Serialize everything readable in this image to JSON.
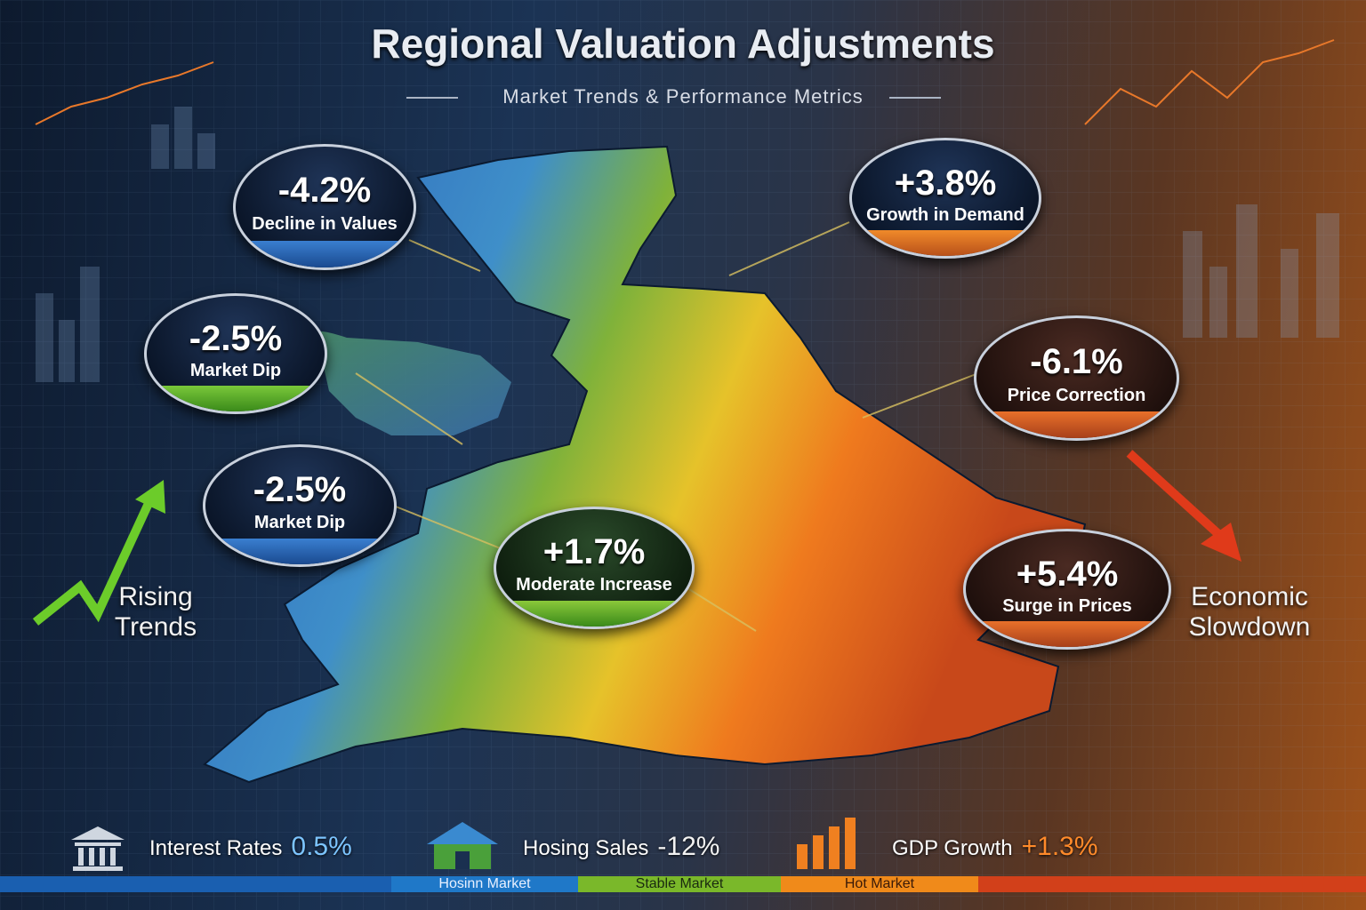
{
  "header": {
    "title": "Regional Valuation Adjustments",
    "subtitle": "Market Trends & Performance Metrics"
  },
  "callouts": [
    {
      "value": "-4.2%",
      "label": "Decline in Values"
    },
    {
      "value": "+3.8%",
      "label": "Growth in Demand"
    },
    {
      "value": "-2.5%",
      "label": "Market Dip"
    },
    {
      "value": "-6.1%",
      "label": "Price Correction"
    },
    {
      "value": "-2.5%",
      "label": "Market Dip"
    },
    {
      "value": "+1.7%",
      "label": "Moderate Increase"
    },
    {
      "value": "+5.4%",
      "label": "Surge in Prices"
    }
  ],
  "side_labels": [
    "Rising Trends",
    "Economic Slowdown"
  ],
  "indicators": [
    {
      "label": "Interest Rates",
      "value": "0.5%"
    },
    {
      "label": "Hosing Sales",
      "value": "-12%"
    },
    {
      "label": "GDP Growth",
      "value": "+1.3%"
    }
  ],
  "legend": [
    "Hosinn Market",
    "Stable Market",
    "Hot Market"
  ]
}
